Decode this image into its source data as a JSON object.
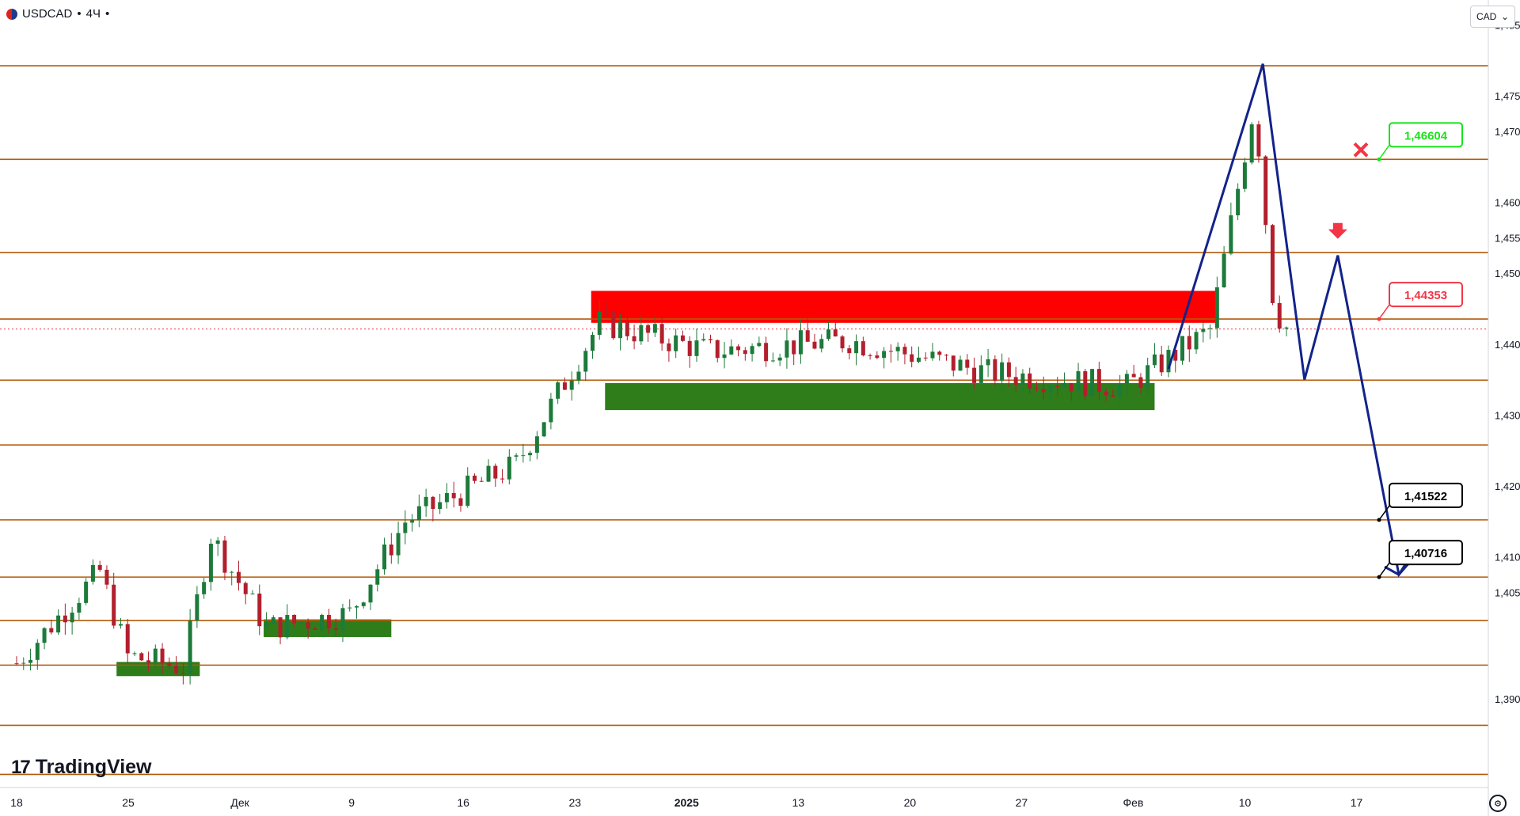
{
  "header": {
    "symbol": "USDCAD",
    "separator": "•",
    "timeframe": "4Ч",
    "suffix": "•"
  },
  "currency_button": {
    "label": "CAD",
    "chevron": "⌄"
  },
  "branding": {
    "mark": "17",
    "name": "TradingView"
  },
  "settings_icon": "gear-icon",
  "colors": {
    "level_line": "#b35a0a",
    "level_badge": "#b34700",
    "resistance_zone": "#ff0000",
    "support_zone": "#2e7d1a",
    "bull_candle": "#1c7a3a",
    "bear_candle": "#b21f2d",
    "path": "#13238a",
    "trail_up": "#4caf50",
    "trail_down": "#f23645",
    "target_green": "#17e517",
    "target_red": "#f23645",
    "target_black": "#000000",
    "current_price": "#f23645"
  },
  "chart_data": {
    "type": "candlestick",
    "symbol": "USDCAD",
    "timeframe": "4Ч",
    "currency": "CAD",
    "y_axis_ticks": [
      "1,48500",
      "1,47500",
      "1,47000",
      "1,46000",
      "1,45500",
      "1,45000",
      "1,44000",
      "1,43000",
      "1,42000",
      "1,41000",
      "1,40500",
      "1,39000"
    ],
    "y_axis_tick_values": [
      1.485,
      1.475,
      1.47,
      1.46,
      1.455,
      1.45,
      1.44,
      1.43,
      1.42,
      1.41,
      1.405,
      1.39
    ],
    "x_axis_ticks": [
      "18",
      "25",
      "Дек",
      "9",
      "16",
      "23",
      "2025",
      "13",
      "20",
      "27",
      "Фев",
      "10",
      "17"
    ],
    "x_axis_bold": [
      "2025"
    ],
    "ylim": [
      1.3775,
      1.4885
    ],
    "horizontal_levels": [
      {
        "value": 1.47923,
        "label": "1,47923"
      },
      {
        "value": 1.46604,
        "label": "1,46604"
      },
      {
        "value": 1.45289,
        "label": "1,45289"
      },
      {
        "value": 1.44353,
        "label": "1,44353"
      },
      {
        "value": 1.43492,
        "label": "1,43492"
      },
      {
        "value": 1.42578,
        "label": "1,42578"
      },
      {
        "value": 1.41522,
        "label": "1,41522"
      },
      {
        "value": 1.40716,
        "label": "1,40716"
      },
      {
        "value": 1.40105,
        "label": "1,40105"
      },
      {
        "value": 1.39475,
        "label": "1,39475"
      },
      {
        "value": 1.38626,
        "label": "1,38626"
      },
      {
        "value": 1.37935,
        "label": "1,37935"
      }
    ],
    "current_price": {
      "value": 1.44212,
      "label": "1,44212"
    },
    "price_targets": [
      {
        "label": "1,46604",
        "value": 1.46604,
        "style": "green",
        "marker": "cross"
      },
      {
        "label": "1,44353",
        "value": 1.44353,
        "style": "red",
        "marker": "none"
      },
      {
        "label": "1,41522",
        "value": 1.41522,
        "style": "black",
        "marker": "none"
      },
      {
        "label": "1,40716",
        "value": 1.40716,
        "style": "black",
        "marker": "none"
      }
    ],
    "zones": [
      {
        "kind": "resistance",
        "x_start": 20.7,
        "x_end": 43.3,
        "y_top": 1.4475,
        "y_bottom": 1.443
      },
      {
        "kind": "support",
        "x_start": 21.2,
        "x_end": 41.0,
        "y_top": 1.4345,
        "y_bottom": 1.4307
      },
      {
        "kind": "support",
        "x_start": 3.6,
        "x_end": 6.6,
        "y_top": 1.3952,
        "y_bottom": 1.3932
      },
      {
        "kind": "support",
        "x_start": 8.9,
        "x_end": 13.5,
        "y_top": 1.4012,
        "y_bottom": 1.3987
      }
    ],
    "projection_path": {
      "x": [
        41.5,
        44.9,
        46.4,
        47.6,
        49.8,
        50.4
      ],
      "y": [
        1.4365,
        1.4795,
        1.435,
        1.4525,
        1.4075,
        1.4102
      ],
      "arrow_at_end": true
    },
    "down_arrow_marker": {
      "x": 47.6,
      "value": 1.4555
    },
    "candles_generated": {
      "x_start": 0,
      "x_step": 0.25,
      "open": 1.395
    }
  }
}
